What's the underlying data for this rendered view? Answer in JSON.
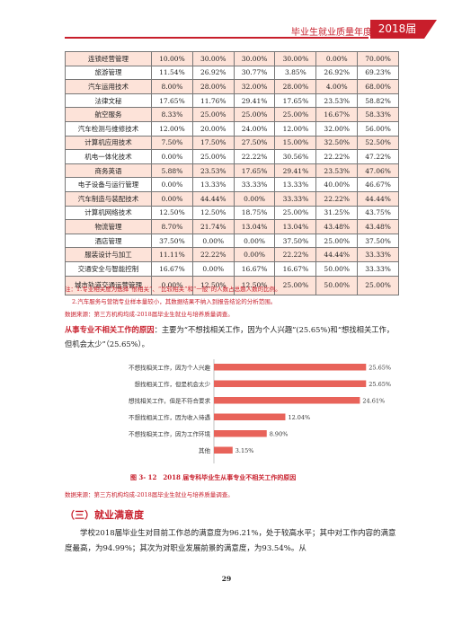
{
  "header": {
    "title": "毕业生就业质量年度报告",
    "year": "2018届",
    "color": "#c81e2b"
  },
  "table": {
    "rows": [
      [
        "连锁经营管理",
        "10.00%",
        "30.00%",
        "30.00%",
        "30.00%",
        "0.00%",
        "70.00%"
      ],
      [
        "旅游管理",
        "11.54%",
        "26.92%",
        "30.77%",
        "3.85%",
        "26.92%",
        "69.23%"
      ],
      [
        "汽车运用技术",
        "8.00%",
        "28.00%",
        "32.00%",
        "28.00%",
        "4.00%",
        "68.00%"
      ],
      [
        "法律文秘",
        "17.65%",
        "11.76%",
        "29.41%",
        "17.65%",
        "23.53%",
        "58.82%"
      ],
      [
        "航空服务",
        "8.33%",
        "25.00%",
        "25.00%",
        "25.00%",
        "16.67%",
        "58.33%"
      ],
      [
        "汽车检测与维修技术",
        "12.00%",
        "20.00%",
        "24.00%",
        "12.00%",
        "32.00%",
        "56.00%"
      ],
      [
        "计算机应用技术",
        "7.50%",
        "17.50%",
        "27.50%",
        "15.00%",
        "32.50%",
        "52.50%"
      ],
      [
        "机电一体化技术",
        "0.00%",
        "25.00%",
        "22.22%",
        "30.56%",
        "22.22%",
        "47.22%"
      ],
      [
        "商务英语",
        "5.88%",
        "23.53%",
        "17.65%",
        "29.41%",
        "23.53%",
        "47.06%"
      ],
      [
        "电子设备与运行管理",
        "0.00%",
        "13.33%",
        "33.33%",
        "13.33%",
        "40.00%",
        "46.67%"
      ],
      [
        "汽车制造与装配技术",
        "0.00%",
        "44.44%",
        "0.00%",
        "33.33%",
        "22.22%",
        "44.44%"
      ],
      [
        "计算机网络技术",
        "12.50%",
        "12.50%",
        "18.75%",
        "25.00%",
        "31.25%",
        "43.75%"
      ],
      [
        "物流管理",
        "8.70%",
        "21.74%",
        "13.04%",
        "13.04%",
        "43.48%",
        "43.48%"
      ],
      [
        "酒店管理",
        "37.50%",
        "0.00%",
        "0.00%",
        "37.50%",
        "25.00%",
        "37.50%"
      ],
      [
        "服装设计与加工",
        "11.11%",
        "22.22%",
        "0.00%",
        "22.22%",
        "44.44%",
        "33.33%"
      ],
      [
        "交通安全与智能控制",
        "16.67%",
        "0.00%",
        "16.67%",
        "16.67%",
        "50.00%",
        "33.33%"
      ],
      [
        "城市轨道交通运营管理",
        "0.00%",
        "12.50%",
        "12.50%",
        "25.00%",
        "50.00%",
        "25.00%"
      ]
    ],
    "row_fill": "#fde3d9"
  },
  "notes": {
    "note1": "注：1.专业相关度为选择“很相关”、“比较相关”和“一般”的人数占总题人数的比例。",
    "note2": "2.汽车服务与营销专业样本量较小，其数据结果不纳入到报告结论的分析范围。",
    "source1": "数据来源：第三方机构均成-2018届毕业生就业与培养质量调查。"
  },
  "paragraph1": {
    "lead": "从事专业不相关工作的原因",
    "rest": "：主要为“不想找相关工作，因为个人兴趣”(25.65%)和“想找相关工作，但机会太少”（25.65%）。"
  },
  "chart_data": {
    "type": "bar",
    "orientation": "horizontal",
    "categories": [
      "不想找相关工作，因为个人兴趣",
      "想找相关工作，但是机会太少",
      "想找相关工作，但是不符合要求",
      "不想找相关工作，因为收入待遇",
      "不想找相关工作，因为工作环境",
      "其他"
    ],
    "values": [
      25.65,
      25.65,
      24.61,
      12.04,
      8.9,
      3.15
    ],
    "value_labels": [
      "25.65%",
      "25.65%",
      "24.61%",
      "12.04%",
      "8.90%",
      "3.15%"
    ],
    "bar_color": "#e8635a",
    "grid": false,
    "xlim": [
      0,
      30
    ]
  },
  "figure": {
    "caption": "图 3- 12　2018 届专科毕业生从事专业不相关工作的原因",
    "source": "数据来源：第三方机构均成-2018届毕业生就业与培养质量调查。"
  },
  "section": {
    "title": "（三）就业满意度"
  },
  "body": {
    "text": "学校2018届毕业生对目前工作总的满意度为96.21%，处于较高水平；其中对工作内容的满意度最高，为94.99%；其次为对职业发展前景的满意度，为93.54%。从"
  },
  "page_number": "29"
}
